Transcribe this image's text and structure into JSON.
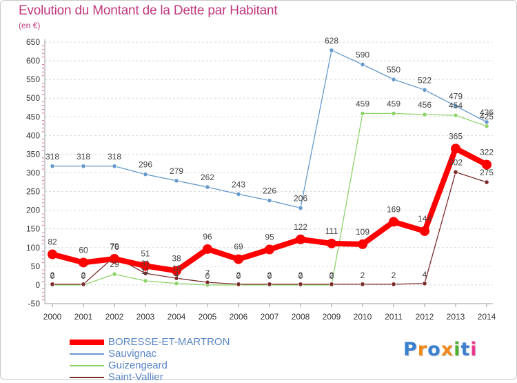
{
  "title": "Evolution du Montant de la Dette par Habitant",
  "subtitle": "(en €)",
  "brand": {
    "letters": [
      {
        "ch": "P",
        "color": "#3a7fd0"
      },
      {
        "ch": "r",
        "color": "#f08a1c"
      },
      {
        "ch": "o",
        "color": "#3a7fd0"
      },
      {
        "ch": "x",
        "color": "#f08a1c"
      },
      {
        "ch": "i",
        "color": "#4caf2e"
      },
      {
        "ch": "t",
        "color": "#3a7fd0"
      },
      {
        "ch": "i",
        "color": "#e83a8f"
      }
    ]
  },
  "chart_data": {
    "type": "line",
    "title": "Evolution du Montant de la Dette par Habitant",
    "subtitle": "(en €)",
    "xlabel": "",
    "ylabel": "",
    "x": [
      "2000",
      "2001",
      "2002",
      "2003",
      "2004",
      "2005",
      "2006",
      "2007",
      "2008",
      "2009",
      "2010",
      "2011",
      "2012",
      "2013",
      "2014"
    ],
    "ylim": [
      -50,
      650
    ],
    "yticks": [
      -50,
      0,
      50,
      100,
      150,
      200,
      250,
      300,
      350,
      400,
      450,
      500,
      550,
      600,
      650
    ],
    "grid": "horizontal-dashed",
    "legend_position": "bottom-left",
    "series": [
      {
        "name": "Sauvignac",
        "color": "#6699cc",
        "width": 1.3,
        "values": [
          318,
          318,
          318,
          296,
          279,
          262,
          243,
          226,
          206,
          628,
          590,
          550,
          522,
          479,
          436
        ],
        "labels": [
          "318",
          "318",
          "318",
          "296",
          "279",
          "262",
          "243",
          "226",
          "206",
          "628",
          "590",
          "550",
          "522",
          "479",
          "436"
        ]
      },
      {
        "name": "Guizengeard",
        "color": "#8ed36b",
        "width": 1.3,
        "values": [
          0,
          0,
          29,
          11,
          4,
          0,
          0,
          0,
          0,
          0,
          459,
          459,
          456,
          454,
          425
        ],
        "labels": [
          "0",
          "0",
          "29",
          "11",
          "4",
          "0",
          "0",
          "0",
          "0",
          "0",
          "459",
          "459",
          "456",
          "454",
          "425"
        ]
      },
      {
        "name": "Saint-Vallier",
        "color": "#7b2a2a",
        "width": 1.3,
        "values": [
          2,
          2,
          76,
          31,
          18,
          7,
          2,
          2,
          2,
          2,
          2,
          2,
          4,
          302,
          275
        ],
        "labels": [
          "2",
          "2",
          "76",
          "31",
          "18",
          "7",
          "2",
          "2",
          "2",
          "2",
          "2",
          "2",
          "4",
          "302",
          "275"
        ]
      },
      {
        "name": "BORESSE-ET-MARTRON",
        "color": "#ff0000",
        "width": 8,
        "values": [
          82,
          60,
          70,
          51,
          38,
          96,
          69,
          95,
          122,
          111,
          109,
          169,
          144,
          365,
          322
        ],
        "labels": [
          "82",
          "60",
          "70",
          "51",
          "38",
          "96",
          "69",
          "95",
          "122",
          "111",
          "109",
          "169",
          "144",
          "365",
          "322"
        ]
      }
    ],
    "legend": [
      {
        "name": "BORESSE-ET-MARTRON",
        "color": "#ff0000",
        "thick": true
      },
      {
        "name": "Sauvignac",
        "color": "#6699cc",
        "thick": false
      },
      {
        "name": "Guizengeard",
        "color": "#8ed36b",
        "thick": false
      },
      {
        "name": "Saint-Vallier",
        "color": "#7b2a2a",
        "thick": false
      }
    ]
  }
}
